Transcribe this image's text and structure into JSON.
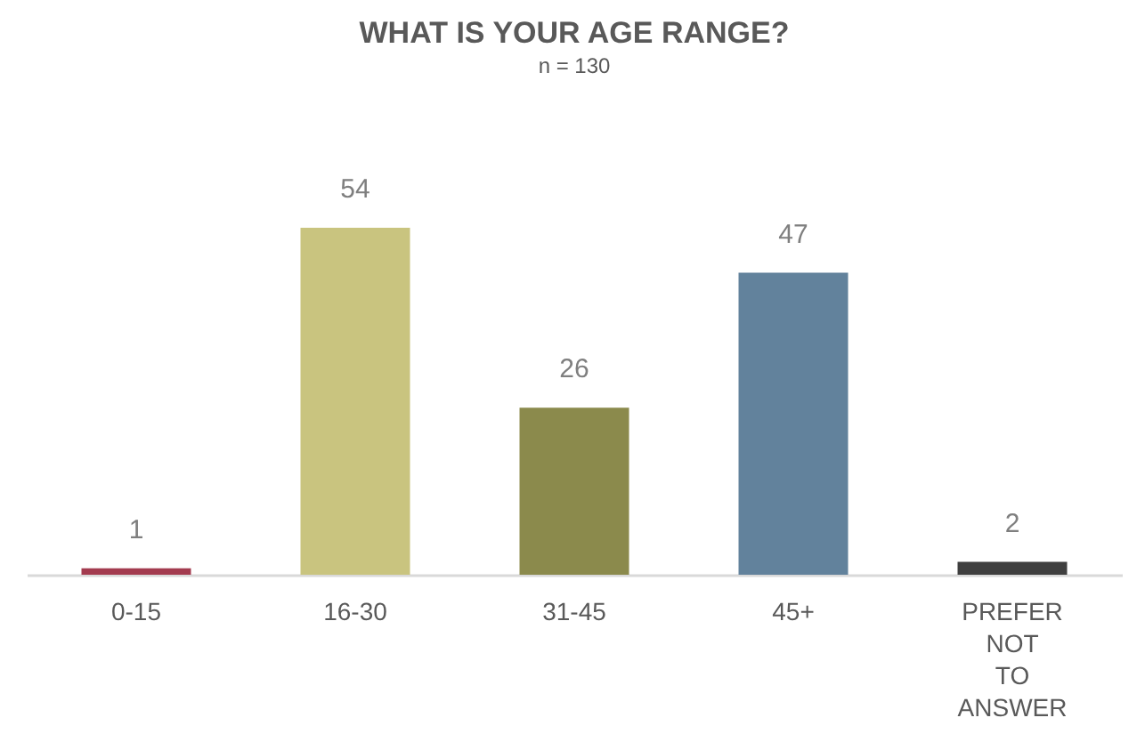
{
  "chart_data": {
    "type": "bar",
    "title": "WHAT IS YOUR AGE RANGE?",
    "subtitle": "n = 130",
    "categories": [
      "0-15",
      "16-30",
      "31-45",
      "45+",
      "PREFER NOT TO ANSWER"
    ],
    "values": [
      1,
      54,
      26,
      47,
      2
    ],
    "colors": [
      "#a33b4f",
      "#c9c47f",
      "#8b8a4c",
      "#62829c",
      "#3f3f3f"
    ],
    "data_labels": true
  }
}
